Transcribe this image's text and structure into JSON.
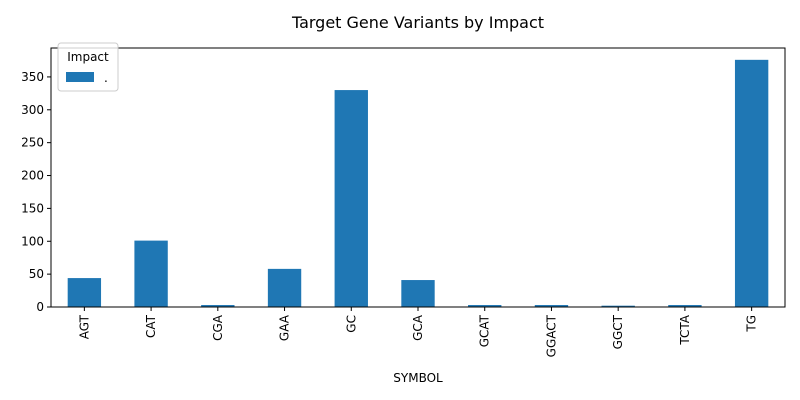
{
  "chart_data": {
    "type": "bar",
    "title": "Target Gene Variants by Impact",
    "xlabel": "SYMBOL",
    "ylabel": "",
    "categories": [
      "AGT",
      "CAT",
      "CGA",
      "GAA",
      "GC",
      "GCA",
      "GCAT",
      "GGACT",
      "GGCT",
      "TCTA",
      "TG"
    ],
    "series": [
      {
        "name": ".",
        "values": [
          44,
          101,
          3,
          58,
          330,
          41,
          3,
          3,
          2,
          3,
          376
        ],
        "color": "#1f77b4"
      }
    ],
    "ylim": [
      0,
      394
    ],
    "yticks": [
      0,
      50,
      100,
      150,
      200,
      250,
      300,
      350
    ],
    "grid": false,
    "legend": {
      "title": "Impact",
      "placement": "top-left"
    }
  }
}
